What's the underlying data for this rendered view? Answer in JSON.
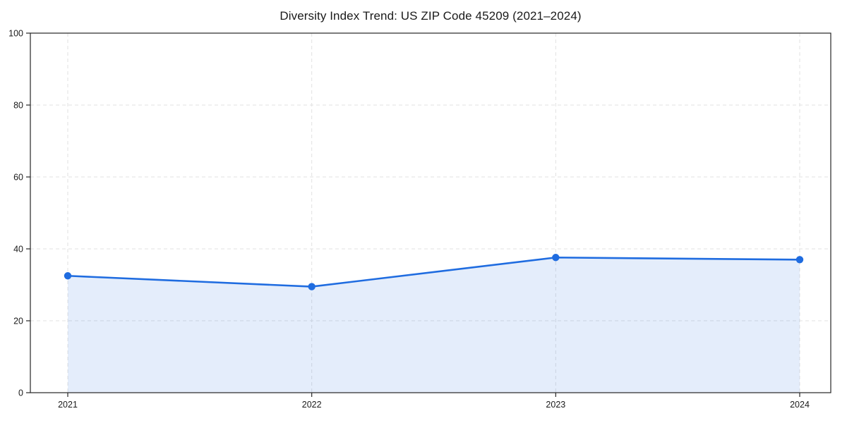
{
  "page": {
    "background_color": "#ffffff"
  },
  "chart_data": {
    "type": "area",
    "title": "Diversity Index Trend: US ZIP Code 45209 (2021–2024)",
    "series_name": "Diversity Index",
    "categories": [
      "2021",
      "2022",
      "2023",
      "2024"
    ],
    "values": [
      32.5,
      29.5,
      37.6,
      37.0
    ],
    "xlabel": "",
    "ylabel": "",
    "ylim": [
      0,
      100
    ],
    "yticks": [
      0,
      20,
      40,
      60,
      80,
      100
    ],
    "grid": "dashed",
    "grid_color": "#e2e2e2",
    "legend_position": "none",
    "line_color": "#1f6ce0",
    "fill_opacity": "0.12",
    "marker": "circle"
  }
}
